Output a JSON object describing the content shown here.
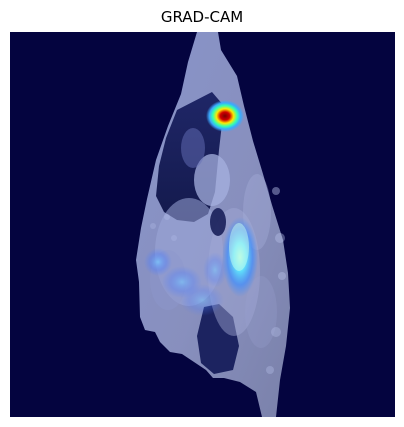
{
  "figure": {
    "title": "GRAD-CAM"
  },
  "image": {
    "description_visible": "",
    "colormap": "jet",
    "background_color": "#04043f"
  }
}
